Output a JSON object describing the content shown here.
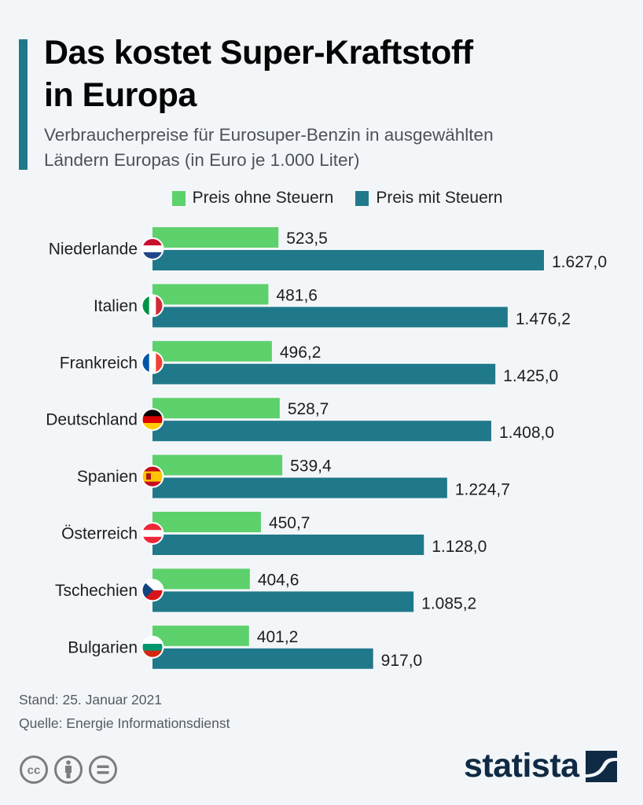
{
  "header": {
    "title_line1": "Das kostet Super-Kraftstoff",
    "title_line2": "in Europa",
    "subtitle_line1": "Verbraucherpreise für Eurosuper-Benzin in ausgewählten",
    "subtitle_line2": "Ländern Europas (in Euro je 1.000 Liter)"
  },
  "colors": {
    "accent": "#20798a",
    "ohne_steuern": "#5dd16b",
    "mit_steuern": "#20798a",
    "logo": "#0f2a44"
  },
  "chart_data": {
    "type": "bar",
    "orientation": "horizontal",
    "title": "Das kostet Super-Kraftstoff in Europa",
    "subtitle": "Verbraucherpreise für Eurosuper-Benzin in ausgewählten Ländern Europas (in Euro je 1.000 Liter)",
    "xlabel": "",
    "ylabel": "",
    "xlim": [
      0,
      1650
    ],
    "grid": false,
    "legend_position": "top-center",
    "categories": [
      "Niederlande",
      "Italien",
      "Frankreich",
      "Deutschland",
      "Spanien",
      "Österreich",
      "Tschechien",
      "Bulgarien"
    ],
    "flags": [
      "flag-netherlands",
      "flag-italy",
      "flag-france",
      "flag-germany",
      "flag-spain",
      "flag-austria",
      "flag-czechia",
      "flag-bulgaria"
    ],
    "series": [
      {
        "name": "Preis ohne Steuern",
        "color": "#5dd16b",
        "values": [
          523.5,
          481.6,
          496.2,
          528.7,
          539.4,
          450.7,
          404.6,
          401.2
        ],
        "labels": [
          "523,5",
          "481,6",
          "496,2",
          "528,7",
          "539,4",
          "450,7",
          "404,6",
          "401,2"
        ]
      },
      {
        "name": "Preis mit Steuern",
        "color": "#20798a",
        "values": [
          1627.0,
          1476.2,
          1425.0,
          1408.0,
          1224.7,
          1128.0,
          1085.2,
          917.0
        ],
        "labels": [
          "1.627,0",
          "1.476,2",
          "1.425,0",
          "1.408,0",
          "1.224,7",
          "1.128,0",
          "1.085,2",
          "917,0"
        ]
      }
    ]
  },
  "footer": {
    "stand": "Stand: 25. Januar 2021",
    "quelle": "Quelle: Energie Informationsdienst",
    "license_icons": [
      "cc-icon",
      "attribution-icon",
      "no-derivatives-icon"
    ],
    "logo_text": "statista"
  }
}
